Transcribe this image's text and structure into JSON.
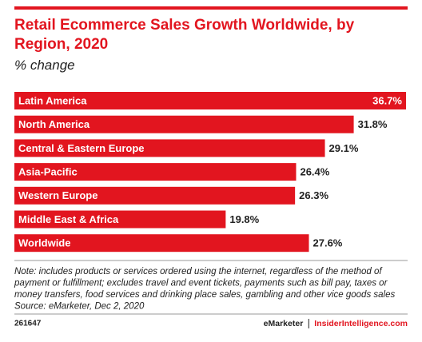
{
  "chart_data": {
    "type": "bar",
    "orientation": "horizontal",
    "title": "Retail Ecommerce Sales Growth Worldwide, by Region, 2020",
    "subtitle": "% change",
    "categories": [
      "Latin America",
      "North America",
      "Central & Eastern Europe",
      "Asia-Pacific",
      "Western Europe",
      "Middle East & Africa",
      "Worldwide"
    ],
    "values": [
      36.7,
      31.8,
      29.1,
      26.4,
      26.3,
      19.8,
      27.6
    ],
    "value_labels": [
      "36.7%",
      "31.8%",
      "29.1%",
      "26.4%",
      "26.3%",
      "19.8%",
      "27.6%"
    ],
    "color": "#e2151f",
    "note": [
      "Note: includes products or services ordered using the internet, regardless of the method of",
      "payment or fulfillment; excludes travel and event tickets, payments such as bill pay, taxes or",
      "money transfers, food services and drinking place sales, gambling and other vice goods sales",
      "Source: eMarketer, Dec 2, 2020"
    ],
    "chart_id": "261647",
    "brand": "eMarketer",
    "site": "InsiderIntelligence.com"
  }
}
